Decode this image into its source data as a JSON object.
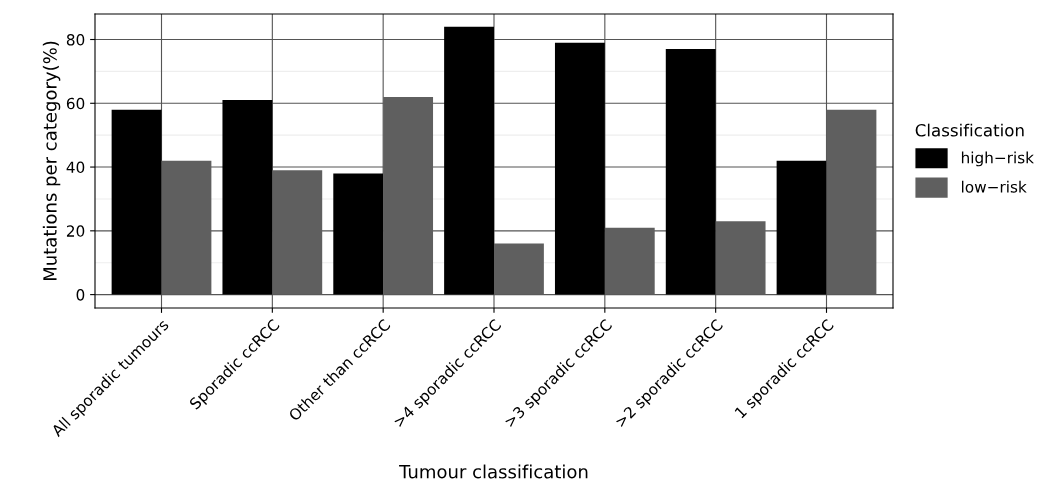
{
  "chart_data": {
    "type": "bar",
    "xlabel": "Tumour classification",
    "ylabel": "Mutations per category(%)",
    "legend_title": "Classification",
    "categories": [
      "All sporadic tumours",
      "Sporadic ccRCC",
      "Other than ccRCC",
      ">4 sporadic ccRCC",
      ">3 sporadic ccRCC",
      ">2 sporadic ccRCC",
      "1 sporadic ccRCC"
    ],
    "series": [
      {
        "name": "high−risk",
        "color": "#000000",
        "values": [
          58,
          61,
          38,
          84,
          79,
          77,
          42
        ]
      },
      {
        "name": "low−risk",
        "color": "#5f5f5f",
        "values": [
          42,
          39,
          62,
          16,
          21,
          23,
          58
        ]
      }
    ],
    "ylim": [
      -4.2,
      88
    ],
    "yticks": [
      0,
      20,
      40,
      60,
      80
    ],
    "grid": true,
    "legend": "right"
  }
}
